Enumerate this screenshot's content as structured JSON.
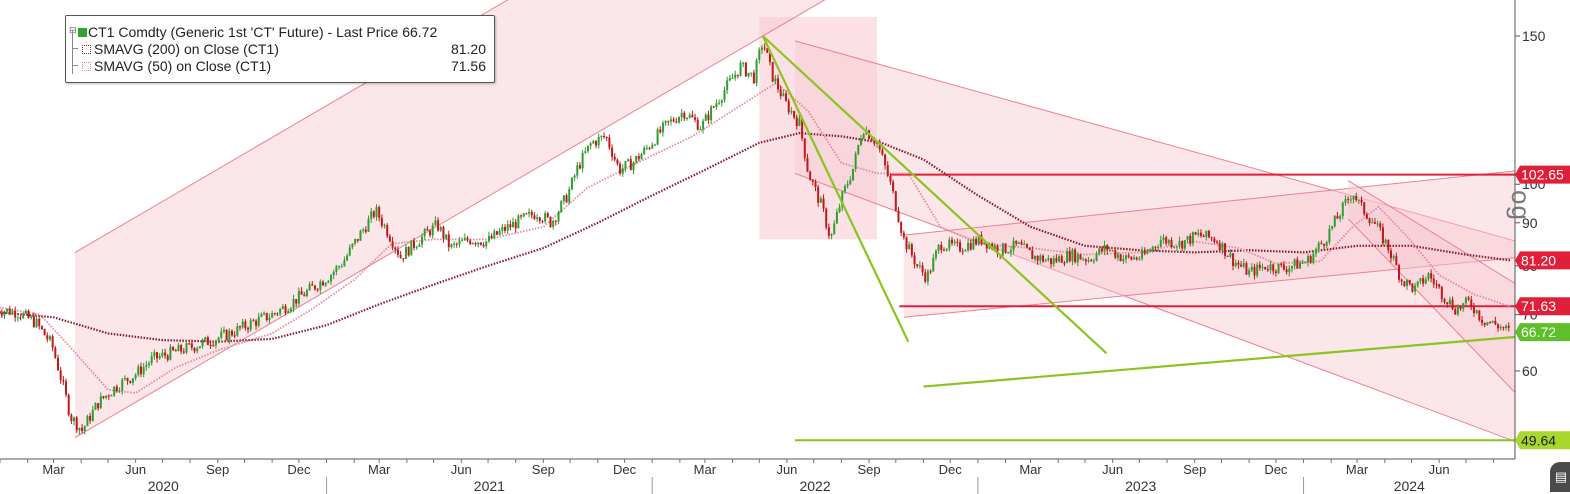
{
  "legend": {
    "main": "CT1 Comdty (Generic 1st 'CT' Future) - Last Price 66.72",
    "sma200_name": "SMAVG (200)  on Close (CT1)",
    "sma200_value": "81.20",
    "sma50_name": "SMAVG (50)  on Close (CT1)",
    "sma50_value": "71.56"
  },
  "colors": {
    "up": "#2e9e2e",
    "down": "#c01818",
    "sma200": "#8b1a2b",
    "sma50": "#e8879a",
    "channel_fill": "#f7c8d0",
    "channel_line": "#f08090",
    "trend_green": "#8ac41e",
    "level_red": "#e0203a",
    "tag_red": "#e0203a",
    "tag_green": "#5fbf2a",
    "tag_lime": "#a8d82c"
  },
  "corner_label": "og",
  "chart_data": {
    "type": "candlestick",
    "y_axis": {
      "scale": "log",
      "ticks": [
        60,
        70,
        80,
        90,
        100,
        150
      ],
      "labels": [
        "60",
        "70",
        "80",
        "90",
        "100",
        "150"
      ],
      "side": "right"
    },
    "x_axis": {
      "start": "2020-01-01",
      "end": "2024-08-25",
      "month_labels": [
        "Mar",
        "Jun",
        "Sep",
        "Dec",
        "Mar",
        "Jun",
        "Sep",
        "Dec",
        "Mar",
        "Jun",
        "Sep",
        "Dec",
        "Mar",
        "Jun",
        "Sep",
        "Dec",
        "Mar",
        "Jun"
      ],
      "month_dates": [
        "2020-03-01",
        "2020-06-01",
        "2020-09-01",
        "2020-12-01",
        "2021-03-01",
        "2021-06-01",
        "2021-09-01",
        "2021-12-01",
        "2022-03-01",
        "2022-06-01",
        "2022-09-01",
        "2022-12-01",
        "2023-03-01",
        "2023-06-01",
        "2023-09-01",
        "2023-12-01",
        "2024-03-01",
        "2024-06-01"
      ],
      "years": [
        "2020",
        "2021",
        "2022",
        "2023",
        "2024"
      ],
      "year_dates": [
        "2020-01-01",
        "2021-01-01",
        "2022-01-01",
        "2023-01-01",
        "2024-01-01"
      ]
    },
    "price_path": [
      [
        "2019-12-28",
        71.0
      ],
      [
        "2020-01-20",
        70.5
      ],
      [
        "2020-02-10",
        68.5
      ],
      [
        "2020-02-28",
        64.5
      ],
      [
        "2020-03-20",
        53.0
      ],
      [
        "2020-04-02",
        51.0
      ],
      [
        "2020-04-20",
        55.0
      ],
      [
        "2020-05-10",
        57.5
      ],
      [
        "2020-06-01",
        59.5
      ],
      [
        "2020-06-20",
        62.0
      ],
      [
        "2020-07-10",
        63.0
      ],
      [
        "2020-08-01",
        64.0
      ],
      [
        "2020-08-20",
        65.0
      ],
      [
        "2020-09-15",
        66.5
      ],
      [
        "2020-10-10",
        68.5
      ],
      [
        "2020-11-01",
        70.0
      ],
      [
        "2020-11-20",
        72.0
      ],
      [
        "2020-12-10",
        74.5
      ],
      [
        "2021-01-05",
        78.0
      ],
      [
        "2021-01-20",
        81.0
      ],
      [
        "2021-02-10",
        88.0
      ],
      [
        "2021-02-25",
        93.0
      ],
      [
        "2021-03-10",
        88.0
      ],
      [
        "2021-03-25",
        82.0
      ],
      [
        "2021-04-15",
        86.0
      ],
      [
        "2021-05-05",
        89.5
      ],
      [
        "2021-05-20",
        84.0
      ],
      [
        "2021-06-10",
        86.0
      ],
      [
        "2021-06-30",
        85.5
      ],
      [
        "2021-07-20",
        88.5
      ],
      [
        "2021-08-10",
        91.0
      ],
      [
        "2021-08-25",
        92.5
      ],
      [
        "2021-09-10",
        90.0
      ],
      [
        "2021-09-28",
        97.0
      ],
      [
        "2021-10-10",
        105.0
      ],
      [
        "2021-10-25",
        112.0
      ],
      [
        "2021-11-10",
        114.0
      ],
      [
        "2021-11-25",
        104.0
      ],
      [
        "2021-12-10",
        106.0
      ],
      [
        "2021-12-25",
        110.0
      ],
      [
        "2022-01-15",
        117.0
      ],
      [
        "2022-02-05",
        122.0
      ],
      [
        "2022-02-25",
        117.0
      ],
      [
        "2022-03-20",
        128.0
      ],
      [
        "2022-04-10",
        138.0
      ],
      [
        "2022-04-25",
        134.0
      ],
      [
        "2022-05-05",
        148.0
      ],
      [
        "2022-05-15",
        135.0
      ],
      [
        "2022-05-30",
        125.0
      ],
      [
        "2022-06-15",
        118.0
      ],
      [
        "2022-06-25",
        103.0
      ],
      [
        "2022-07-10",
        94.0
      ],
      [
        "2022-07-20",
        86.0
      ],
      [
        "2022-08-01",
        96.0
      ],
      [
        "2022-08-15",
        105.0
      ],
      [
        "2022-08-25",
        117.0
      ],
      [
        "2022-09-10",
        112.0
      ],
      [
        "2022-09-25",
        100.0
      ],
      [
        "2022-10-10",
        86.0
      ],
      [
        "2022-10-25",
        80.0
      ],
      [
        "2022-11-05",
        77.5
      ],
      [
        "2022-11-20",
        85.0
      ],
      [
        "2022-12-10",
        84.0
      ],
      [
        "2023-01-05",
        86.0
      ],
      [
        "2023-01-25",
        83.5
      ],
      [
        "2023-02-15",
        84.5
      ],
      [
        "2023-03-05",
        82.0
      ],
      [
        "2023-03-25",
        81.0
      ],
      [
        "2023-04-15",
        82.5
      ],
      [
        "2023-05-05",
        81.5
      ],
      [
        "2023-05-25",
        84.0
      ],
      [
        "2023-06-15",
        81.5
      ],
      [
        "2023-07-05",
        82.0
      ],
      [
        "2023-07-25",
        86.0
      ],
      [
        "2023-08-15",
        85.0
      ],
      [
        "2023-09-05",
        87.0
      ],
      [
        "2023-09-25",
        86.0
      ],
      [
        "2023-10-15",
        81.0
      ],
      [
        "2023-11-01",
        78.5
      ],
      [
        "2023-11-20",
        80.0
      ],
      [
        "2023-12-10",
        79.5
      ],
      [
        "2024-01-05",
        81.0
      ],
      [
        "2024-01-25",
        86.0
      ],
      [
        "2024-02-10",
        92.0
      ],
      [
        "2024-02-25",
        98.0
      ],
      [
        "2024-03-05",
        94.0
      ],
      [
        "2024-03-20",
        90.0
      ],
      [
        "2024-04-05",
        84.0
      ],
      [
        "2024-04-20",
        77.0
      ],
      [
        "2024-05-05",
        75.0
      ],
      [
        "2024-05-20",
        78.0
      ],
      [
        "2024-06-05",
        74.0
      ],
      [
        "2024-06-20",
        71.0
      ],
      [
        "2024-07-05",
        72.5
      ],
      [
        "2024-07-20",
        69.0
      ],
      [
        "2024-08-05",
        68.0
      ],
      [
        "2024-08-20",
        66.72
      ]
    ],
    "sma200_path": [
      [
        "2019-12-28",
        70.5
      ],
      [
        "2020-03-01",
        69.5
      ],
      [
        "2020-05-01",
        66.5
      ],
      [
        "2020-07-01",
        65.3
      ],
      [
        "2020-09-01",
        65.0
      ],
      [
        "2020-11-01",
        65.5
      ],
      [
        "2021-01-01",
        68.0
      ],
      [
        "2021-03-01",
        72.0
      ],
      [
        "2021-05-01",
        76.0
      ],
      [
        "2021-07-01",
        80.0
      ],
      [
        "2021-09-01",
        84.0
      ],
      [
        "2021-11-01",
        90.0
      ],
      [
        "2022-01-01",
        97.0
      ],
      [
        "2022-03-01",
        104.0
      ],
      [
        "2022-05-01",
        112.0
      ],
      [
        "2022-06-15",
        115.0
      ],
      [
        "2022-08-01",
        114.0
      ],
      [
        "2022-09-15",
        112.0
      ],
      [
        "2022-11-01",
        107.0
      ],
      [
        "2023-01-01",
        97.0
      ],
      [
        "2023-03-01",
        89.0
      ],
      [
        "2023-05-01",
        84.5
      ],
      [
        "2023-07-01",
        83.5
      ],
      [
        "2023-09-01",
        83.0
      ],
      [
        "2023-11-01",
        83.5
      ],
      [
        "2024-01-01",
        83.0
      ],
      [
        "2024-03-01",
        84.5
      ],
      [
        "2024-05-01",
        84.5
      ],
      [
        "2024-07-01",
        82.5
      ],
      [
        "2024-08-20",
        81.2
      ]
    ],
    "sma50_path": [
      [
        "2019-12-28",
        71.5
      ],
      [
        "2020-02-15",
        70.0
      ],
      [
        "2020-03-20",
        64.0
      ],
      [
        "2020-05-01",
        57.0
      ],
      [
        "2020-06-01",
        56.5
      ],
      [
        "2020-07-15",
        60.5
      ],
      [
        "2020-09-01",
        63.5
      ],
      [
        "2020-11-01",
        66.5
      ],
      [
        "2020-12-15",
        71.0
      ],
      [
        "2021-02-01",
        77.0
      ],
      [
        "2021-03-15",
        85.0
      ],
      [
        "2021-05-01",
        86.0
      ],
      [
        "2021-07-01",
        86.0
      ],
      [
        "2021-09-01",
        89.0
      ],
      [
        "2021-10-20",
        99.0
      ],
      [
        "2021-12-15",
        106.0
      ],
      [
        "2022-02-15",
        114.0
      ],
      [
        "2022-04-15",
        125.0
      ],
      [
        "2022-05-20",
        132.0
      ],
      [
        "2022-06-25",
        122.0
      ],
      [
        "2022-08-01",
        106.0
      ],
      [
        "2022-09-10",
        103.0
      ],
      [
        "2022-10-15",
        103.0
      ],
      [
        "2022-11-20",
        89.0
      ],
      [
        "2023-01-01",
        85.0
      ],
      [
        "2023-03-01",
        84.0
      ],
      [
        "2023-05-01",
        82.5
      ],
      [
        "2023-07-01",
        83.0
      ],
      [
        "2023-09-01",
        85.5
      ],
      [
        "2023-10-20",
        84.0
      ],
      [
        "2023-12-01",
        80.5
      ],
      [
        "2024-01-20",
        81.0
      ],
      [
        "2024-02-25",
        89.0
      ],
      [
        "2024-03-25",
        94.0
      ],
      [
        "2024-04-25",
        87.0
      ],
      [
        "2024-06-01",
        78.0
      ],
      [
        "2024-07-10",
        74.0
      ],
      [
        "2024-08-20",
        71.56
      ]
    ],
    "last_price": 66.72,
    "price_tags": [
      {
        "value": 102.65,
        "label": "102.65",
        "color": "red"
      },
      {
        "value": 81.2,
        "label": "81.20",
        "color": "red"
      },
      {
        "value": 71.63,
        "label": "71.63",
        "color": "red"
      },
      {
        "value": 66.72,
        "label": "66.72",
        "color": "green"
      },
      {
        "value": 49.64,
        "label": "49.64",
        "color": "lime"
      }
    ],
    "horizontal_levels": [
      {
        "value": 102.65,
        "from": "2022-09-25",
        "color": "red"
      },
      {
        "value": 71.63,
        "from": "2022-10-05",
        "color": "red"
      },
      {
        "value": 49.64,
        "from": "2022-06-10",
        "color": "lime"
      }
    ],
    "channels": [
      {
        "from": [
          "2020-03-25",
          50.0
        ],
        "to": [
          "2022-05-05",
          150.0
        ],
        "width_ratio": 0.82,
        "extend_to": "2022-07-20"
      },
      {
        "from": [
          "2022-06-10",
          148.0
        ],
        "to": [
          "2024-09-05",
          85.0
        ],
        "lower_from": [
          "2022-06-10",
          103.0
        ],
        "lower_to": [
          "2024-09-05",
          49.0
        ]
      },
      {
        "from": [
          "2022-10-10",
          87.0
        ],
        "to": [
          "2024-09-05",
          104.0
        ],
        "lower_from": [
          "2022-10-10",
          69.5
        ],
        "lower_to": [
          "2024-09-05",
          82.0
        ]
      },
      {
        "from": [
          "2024-02-20",
          101.0
        ],
        "to": [
          "2024-09-05",
          75.0
        ],
        "lower_from": [
          "2024-02-20",
          91.0
        ],
        "lower_to": [
          "2024-09-05",
          55.0
        ]
      }
    ],
    "shaded_zone": {
      "from": "2022-05-01",
      "to": "2022-09-10",
      "top": 158,
      "bottom": 86
    },
    "green_trendlines": [
      {
        "from": [
          "2022-05-05",
          150.0
        ],
        "to": [
          "2022-10-15",
          65.0
        ]
      },
      {
        "from": [
          "2022-05-05",
          150.0
        ],
        "to": [
          "2023-05-25",
          63.0
        ]
      },
      {
        "from": [
          "2022-11-01",
          57.5
        ],
        "to": [
          "2024-09-05",
          66.0
        ]
      }
    ]
  }
}
